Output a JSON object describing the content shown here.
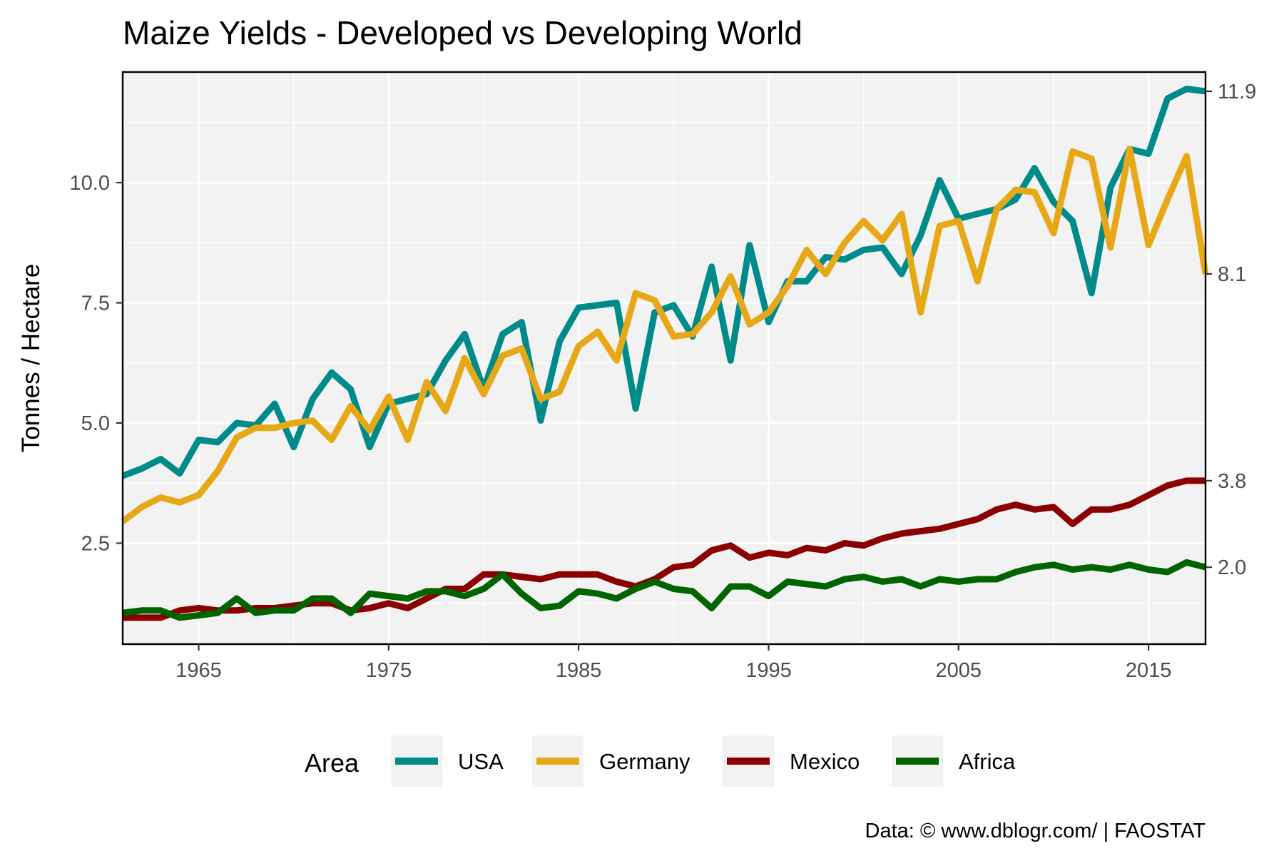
{
  "chart_data": {
    "type": "line",
    "title": "Maize Yields - Developed vs Developing World",
    "ylabel": "Tonnes / Hectare",
    "xlabel": "",
    "xlim": [
      1961,
      2018
    ],
    "ylim": [
      0.4,
      12.3
    ],
    "x_ticks": [
      1965,
      1975,
      1985,
      1995,
      2005,
      2015
    ],
    "x_tick_labels": [
      "1965",
      "1975",
      "1985",
      "1995",
      "2005",
      "2015"
    ],
    "y_ticks": [
      2.5,
      5.0,
      7.5,
      10.0
    ],
    "y_tick_labels": [
      "2.5",
      "5.0",
      "7.5",
      "10.0"
    ],
    "y_right_labels": [
      {
        "text": "11.9",
        "value": 11.9
      },
      {
        "text": "8.1",
        "value": 8.1
      },
      {
        "text": "3.8",
        "value": 3.8
      },
      {
        "text": "2.0",
        "value": 2.0
      }
    ],
    "grid": true,
    "background": "#f2f2f2",
    "legend": {
      "title": "Area",
      "position": "bottom"
    },
    "caption": "Data: © www.dblogr.com/  |  FAOSTAT",
    "x": [
      1961,
      1962,
      1963,
      1964,
      1965,
      1966,
      1967,
      1968,
      1969,
      1970,
      1971,
      1972,
      1973,
      1974,
      1975,
      1976,
      1977,
      1978,
      1979,
      1980,
      1981,
      1982,
      1983,
      1984,
      1985,
      1986,
      1987,
      1988,
      1989,
      1990,
      1991,
      1992,
      1993,
      1994,
      1995,
      1996,
      1997,
      1998,
      1999,
      2000,
      2001,
      2002,
      2003,
      2004,
      2005,
      2006,
      2007,
      2008,
      2009,
      2010,
      2011,
      2012,
      2013,
      2014,
      2015,
      2016,
      2017,
      2018
    ],
    "series": [
      {
        "name": "USA",
        "color": "#008b8b",
        "values": [
          3.9,
          4.05,
          4.25,
          3.95,
          4.65,
          4.6,
          5.0,
          4.95,
          5.4,
          4.5,
          5.5,
          6.05,
          5.7,
          4.5,
          5.4,
          5.5,
          5.6,
          6.3,
          6.85,
          5.7,
          6.85,
          7.1,
          5.05,
          6.7,
          7.4,
          7.45,
          7.5,
          5.3,
          7.3,
          7.45,
          6.8,
          8.25,
          6.3,
          8.7,
          7.1,
          7.95,
          7.95,
          8.45,
          8.4,
          8.6,
          8.65,
          8.1,
          8.9,
          10.05,
          9.25,
          9.35,
          9.45,
          9.65,
          10.3,
          9.6,
          9.2,
          7.7,
          9.9,
          10.7,
          10.6,
          11.75,
          11.95,
          11.9
        ]
      },
      {
        "name": "Germany",
        "color": "#e6a817",
        "values": [
          2.95,
          3.25,
          3.45,
          3.35,
          3.5,
          4.0,
          4.7,
          4.9,
          4.9,
          5.0,
          5.05,
          4.65,
          5.35,
          4.85,
          5.55,
          4.65,
          5.85,
          5.25,
          6.35,
          5.6,
          6.4,
          6.55,
          5.5,
          5.65,
          6.6,
          6.9,
          6.3,
          7.7,
          7.55,
          6.8,
          6.85,
          7.3,
          8.05,
          7.05,
          7.3,
          7.85,
          8.6,
          8.1,
          8.75,
          9.2,
          8.8,
          9.35,
          7.3,
          9.1,
          9.2,
          7.95,
          9.45,
          9.85,
          9.8,
          8.95,
          10.65,
          10.5,
          8.65,
          10.7,
          8.7,
          9.65,
          10.55,
          8.1
        ]
      },
      {
        "name": "Mexico",
        "color": "#8b0000",
        "values": [
          0.95,
          0.95,
          0.95,
          1.1,
          1.15,
          1.1,
          1.1,
          1.15,
          1.15,
          1.2,
          1.25,
          1.25,
          1.1,
          1.15,
          1.25,
          1.15,
          1.35,
          1.55,
          1.55,
          1.85,
          1.85,
          1.8,
          1.75,
          1.85,
          1.85,
          1.85,
          1.7,
          1.6,
          1.75,
          2.0,
          2.05,
          2.35,
          2.45,
          2.2,
          2.3,
          2.25,
          2.4,
          2.35,
          2.5,
          2.45,
          2.6,
          2.7,
          2.75,
          2.8,
          2.9,
          3.0,
          3.2,
          3.3,
          3.2,
          3.25,
          2.9,
          3.2,
          3.2,
          3.3,
          3.5,
          3.7,
          3.8,
          3.8
        ]
      },
      {
        "name": "Africa",
        "color": "#006400",
        "values": [
          1.05,
          1.1,
          1.1,
          0.95,
          1.0,
          1.05,
          1.35,
          1.05,
          1.1,
          1.1,
          1.35,
          1.35,
          1.05,
          1.45,
          1.4,
          1.35,
          1.5,
          1.5,
          1.4,
          1.55,
          1.85,
          1.45,
          1.15,
          1.2,
          1.5,
          1.45,
          1.35,
          1.55,
          1.7,
          1.55,
          1.5,
          1.15,
          1.6,
          1.6,
          1.4,
          1.7,
          1.65,
          1.6,
          1.75,
          1.8,
          1.7,
          1.75,
          1.6,
          1.75,
          1.7,
          1.75,
          1.75,
          1.9,
          2.0,
          2.05,
          1.95,
          2.0,
          1.95,
          2.05,
          1.95,
          1.9,
          2.1,
          2.0
        ]
      }
    ]
  }
}
